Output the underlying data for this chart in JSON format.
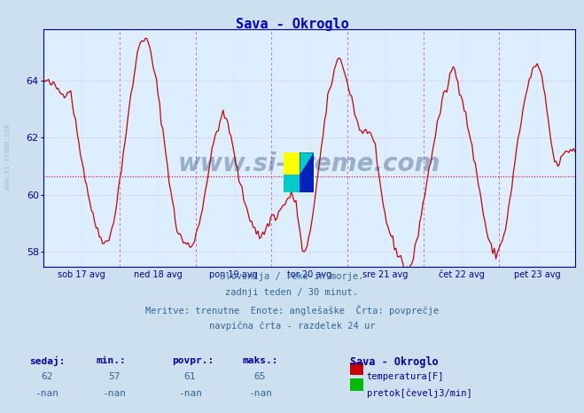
{
  "title": "Sava - Okroglo",
  "title_color": "#0000cc",
  "bg_color": "#cce0f0",
  "plot_bg_color": "#ddeeff",
  "line_color": "#cc0000",
  "avg_value": 60.65,
  "avg_line_color": "#cc0000",
  "y_min": 57.5,
  "y_max": 65.8,
  "y_ticks": [
    58,
    60,
    62,
    64
  ],
  "x_labels": [
    "sob 17 avg",
    "ned 18 avg",
    "pon 19 avg",
    "tor 20 avg",
    "sre 21 avg",
    "čet 22 avg",
    "pet 23 avg"
  ],
  "vline_color": "#cc44cc",
  "grid_h_color": "#ddaaaa",
  "grid_v_color": "#ddaaaa",
  "border_color": "#0000aa",
  "subtitle_lines": [
    "Slovenija / reke in morje.",
    "zadnji teden / 30 minut.",
    "Meritve: trenutne  Enote: anglešaške  Črta: povprečje",
    "navpična črta - razdelek 24 ur"
  ],
  "table_headers": [
    "sedaj:",
    "min.:",
    "povpr.:",
    "maks.:"
  ],
  "table_values_row1": [
    "62",
    "57",
    "61",
    "65"
  ],
  "table_values_row2": [
    "-nan",
    "-nan",
    "-nan",
    "-nan"
  ],
  "station_name": "Sava - Okroglo",
  "legend_temp": "temperatura[F]",
  "legend_flow": "pretok[čevelj3/min]",
  "temp_color": "#cc0000",
  "flow_color": "#00bb00",
  "watermark_text": "www.si-vreme.com",
  "watermark_color": "#1a3a6a",
  "watermark_alpha": 0.35,
  "n_points": 336,
  "days": 7
}
